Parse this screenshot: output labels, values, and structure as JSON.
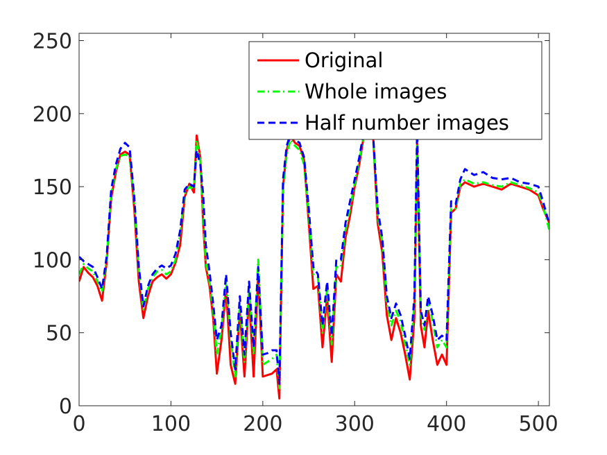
{
  "chart_data": {
    "type": "line",
    "title": "",
    "xlabel": "",
    "ylabel": "",
    "xlim": [
      0,
      512
    ],
    "ylim": [
      0,
      255
    ],
    "xticks": [
      0,
      100,
      200,
      300,
      400,
      500
    ],
    "yticks": [
      0,
      50,
      100,
      150,
      200,
      250
    ],
    "grid": false,
    "legend_position": "top-right",
    "series": [
      {
        "name": "Original",
        "color": "#ff0000",
        "style": "solid",
        "x": [
          0,
          5,
          10,
          15,
          20,
          25,
          30,
          35,
          40,
          45,
          50,
          55,
          60,
          65,
          70,
          75,
          80,
          85,
          90,
          95,
          100,
          105,
          110,
          115,
          120,
          125,
          128,
          132,
          135,
          138,
          142,
          146,
          150,
          155,
          160,
          165,
          170,
          175,
          180,
          185,
          190,
          195,
          200,
          205,
          210,
          215,
          218,
          222,
          226,
          230,
          235,
          240,
          245,
          250,
          255,
          260,
          265,
          270,
          275,
          280,
          285,
          290,
          295,
          300,
          305,
          310,
          315,
          320,
          325,
          330,
          335,
          340,
          345,
          350,
          355,
          360,
          365,
          368,
          372,
          376,
          380,
          385,
          390,
          395,
          400,
          405,
          410,
          415,
          420,
          430,
          440,
          450,
          460,
          470,
          480,
          490,
          500,
          505,
          512
        ],
        "y": [
          85,
          95,
          91,
          88,
          82,
          72,
          98,
          142,
          160,
          172,
          174,
          172,
          135,
          85,
          60,
          75,
          85,
          88,
          90,
          87,
          90,
          98,
          110,
          143,
          152,
          146,
          185,
          170,
          125,
          95,
          82,
          60,
          22,
          45,
          80,
          28,
          15,
          65,
          20,
          75,
          20,
          90,
          20,
          21,
          22,
          25,
          5,
          150,
          175,
          185,
          180,
          178,
          168,
          125,
          80,
          82,
          40,
          75,
          30,
          90,
          85,
          115,
          130,
          150,
          165,
          185,
          190,
          185,
          125,
          105,
          62,
          45,
          60,
          50,
          35,
          18,
          60,
          180,
          55,
          40,
          65,
          45,
          28,
          35,
          28,
          132,
          135,
          150,
          153,
          150,
          152,
          150,
          148,
          152,
          150,
          148,
          144,
          135,
          125
        ]
      },
      {
        "name": "Whole images",
        "color": "#00ff00",
        "style": "dashdot",
        "x": [
          0,
          5,
          10,
          15,
          20,
          25,
          30,
          35,
          40,
          45,
          50,
          55,
          60,
          65,
          70,
          75,
          80,
          85,
          90,
          95,
          100,
          105,
          110,
          115,
          120,
          125,
          128,
          132,
          135,
          138,
          142,
          146,
          150,
          155,
          160,
          165,
          170,
          175,
          180,
          185,
          190,
          195,
          200,
          205,
          210,
          215,
          218,
          222,
          226,
          230,
          235,
          240,
          245,
          250,
          255,
          260,
          265,
          270,
          275,
          280,
          285,
          290,
          295,
          300,
          305,
          310,
          315,
          320,
          325,
          330,
          335,
          340,
          345,
          350,
          355,
          360,
          365,
          368,
          372,
          376,
          380,
          385,
          390,
          395,
          400,
          405,
          410,
          415,
          420,
          430,
          440,
          450,
          460,
          470,
          480,
          490,
          500,
          505,
          512
        ],
        "y": [
          90,
          97,
          94,
          92,
          85,
          78,
          100,
          145,
          162,
          171,
          172,
          171,
          140,
          92,
          66,
          80,
          88,
          92,
          93,
          90,
          92,
          100,
          118,
          145,
          150,
          148,
          182,
          168,
          130,
          98,
          85,
          65,
          35,
          52,
          85,
          45,
          20,
          70,
          30,
          80,
          35,
          100,
          28,
          30,
          32,
          35,
          12,
          148,
          172,
          182,
          178,
          175,
          165,
          130,
          90,
          88,
          50,
          80,
          42,
          95,
          95,
          120,
          135,
          152,
          168,
          185,
          190,
          183,
          130,
          112,
          70,
          55,
          65,
          58,
          42,
          28,
          70,
          178,
          62,
          52,
          72,
          58,
          40,
          45,
          40,
          135,
          135,
          152,
          155,
          152,
          153,
          151,
          150,
          153,
          151,
          149,
          146,
          137,
          120
        ]
      },
      {
        "name": "Half number images",
        "color": "#0000ff",
        "style": "dashed",
        "x": [
          0,
          5,
          10,
          15,
          20,
          25,
          30,
          35,
          40,
          45,
          50,
          55,
          60,
          65,
          70,
          75,
          80,
          85,
          90,
          95,
          100,
          105,
          110,
          115,
          120,
          125,
          128,
          132,
          135,
          138,
          142,
          146,
          150,
          155,
          160,
          165,
          170,
          175,
          180,
          185,
          190,
          195,
          200,
          205,
          210,
          215,
          218,
          222,
          226,
          230,
          235,
          240,
          245,
          250,
          255,
          260,
          265,
          270,
          275,
          280,
          285,
          290,
          295,
          300,
          305,
          310,
          315,
          320,
          325,
          330,
          335,
          340,
          345,
          350,
          355,
          360,
          365,
          368,
          372,
          376,
          380,
          385,
          390,
          395,
          400,
          405,
          410,
          415,
          420,
          430,
          440,
          450,
          460,
          470,
          480,
          490,
          500,
          505,
          512
        ],
        "y": [
          102,
          99,
          97,
          95,
          88,
          80,
          102,
          148,
          165,
          176,
          180,
          177,
          143,
          95,
          68,
          82,
          90,
          94,
          96,
          94,
          96,
          104,
          120,
          148,
          152,
          150,
          175,
          165,
          145,
          110,
          92,
          70,
          45,
          55,
          90,
          50,
          25,
          75,
          35,
          85,
          40,
          95,
          35,
          36,
          38,
          38,
          15,
          155,
          178,
          186,
          182,
          180,
          170,
          135,
          95,
          90,
          55,
          85,
          48,
          100,
          100,
          125,
          140,
          155,
          170,
          188,
          192,
          186,
          135,
          115,
          75,
          60,
          70,
          62,
          48,
          32,
          75,
          190,
          65,
          55,
          75,
          62,
          45,
          48,
          45,
          140,
          138,
          155,
          162,
          158,
          160,
          156,
          155,
          156,
          153,
          152,
          150,
          140,
          124
        ]
      }
    ]
  }
}
